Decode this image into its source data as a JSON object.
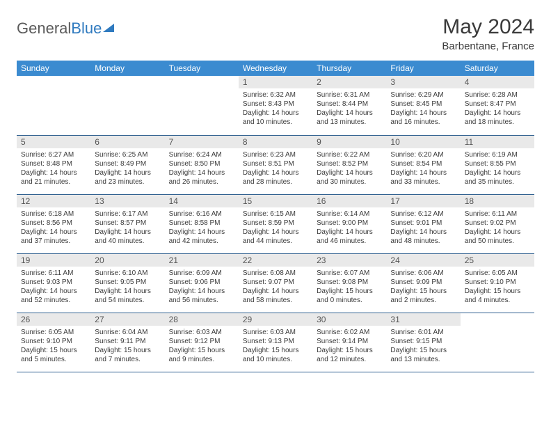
{
  "logo": {
    "part1": "General",
    "part2": "Blue"
  },
  "title": "May 2024",
  "location": "Barbentane, France",
  "colors": {
    "header_bg": "#3b8bd0",
    "header_text": "#ffffff",
    "daynum_bg": "#e9e9e9",
    "row_border": "#2e5f8f",
    "logo_gray": "#5a5a5a",
    "logo_blue": "#2f7abf",
    "text": "#3a3a3a"
  },
  "dayNames": [
    "Sunday",
    "Monday",
    "Tuesday",
    "Wednesday",
    "Thursday",
    "Friday",
    "Saturday"
  ],
  "weeks": [
    [
      null,
      null,
      null,
      {
        "n": "1",
        "sr": "6:32 AM",
        "ss": "8:43 PM",
        "dl": "14 hours and 10 minutes."
      },
      {
        "n": "2",
        "sr": "6:31 AM",
        "ss": "8:44 PM",
        "dl": "14 hours and 13 minutes."
      },
      {
        "n": "3",
        "sr": "6:29 AM",
        "ss": "8:45 PM",
        "dl": "14 hours and 16 minutes."
      },
      {
        "n": "4",
        "sr": "6:28 AM",
        "ss": "8:47 PM",
        "dl": "14 hours and 18 minutes."
      }
    ],
    [
      {
        "n": "5",
        "sr": "6:27 AM",
        "ss": "8:48 PM",
        "dl": "14 hours and 21 minutes."
      },
      {
        "n": "6",
        "sr": "6:25 AM",
        "ss": "8:49 PM",
        "dl": "14 hours and 23 minutes."
      },
      {
        "n": "7",
        "sr": "6:24 AM",
        "ss": "8:50 PM",
        "dl": "14 hours and 26 minutes."
      },
      {
        "n": "8",
        "sr": "6:23 AM",
        "ss": "8:51 PM",
        "dl": "14 hours and 28 minutes."
      },
      {
        "n": "9",
        "sr": "6:22 AM",
        "ss": "8:52 PM",
        "dl": "14 hours and 30 minutes."
      },
      {
        "n": "10",
        "sr": "6:20 AM",
        "ss": "8:54 PM",
        "dl": "14 hours and 33 minutes."
      },
      {
        "n": "11",
        "sr": "6:19 AM",
        "ss": "8:55 PM",
        "dl": "14 hours and 35 minutes."
      }
    ],
    [
      {
        "n": "12",
        "sr": "6:18 AM",
        "ss": "8:56 PM",
        "dl": "14 hours and 37 minutes."
      },
      {
        "n": "13",
        "sr": "6:17 AM",
        "ss": "8:57 PM",
        "dl": "14 hours and 40 minutes."
      },
      {
        "n": "14",
        "sr": "6:16 AM",
        "ss": "8:58 PM",
        "dl": "14 hours and 42 minutes."
      },
      {
        "n": "15",
        "sr": "6:15 AM",
        "ss": "8:59 PM",
        "dl": "14 hours and 44 minutes."
      },
      {
        "n": "16",
        "sr": "6:14 AM",
        "ss": "9:00 PM",
        "dl": "14 hours and 46 minutes."
      },
      {
        "n": "17",
        "sr": "6:12 AM",
        "ss": "9:01 PM",
        "dl": "14 hours and 48 minutes."
      },
      {
        "n": "18",
        "sr": "6:11 AM",
        "ss": "9:02 PM",
        "dl": "14 hours and 50 minutes."
      }
    ],
    [
      {
        "n": "19",
        "sr": "6:11 AM",
        "ss": "9:03 PM",
        "dl": "14 hours and 52 minutes."
      },
      {
        "n": "20",
        "sr": "6:10 AM",
        "ss": "9:05 PM",
        "dl": "14 hours and 54 minutes."
      },
      {
        "n": "21",
        "sr": "6:09 AM",
        "ss": "9:06 PM",
        "dl": "14 hours and 56 minutes."
      },
      {
        "n": "22",
        "sr": "6:08 AM",
        "ss": "9:07 PM",
        "dl": "14 hours and 58 minutes."
      },
      {
        "n": "23",
        "sr": "6:07 AM",
        "ss": "9:08 PM",
        "dl": "15 hours and 0 minutes."
      },
      {
        "n": "24",
        "sr": "6:06 AM",
        "ss": "9:09 PM",
        "dl": "15 hours and 2 minutes."
      },
      {
        "n": "25",
        "sr": "6:05 AM",
        "ss": "9:10 PM",
        "dl": "15 hours and 4 minutes."
      }
    ],
    [
      {
        "n": "26",
        "sr": "6:05 AM",
        "ss": "9:10 PM",
        "dl": "15 hours and 5 minutes."
      },
      {
        "n": "27",
        "sr": "6:04 AM",
        "ss": "9:11 PM",
        "dl": "15 hours and 7 minutes."
      },
      {
        "n": "28",
        "sr": "6:03 AM",
        "ss": "9:12 PM",
        "dl": "15 hours and 9 minutes."
      },
      {
        "n": "29",
        "sr": "6:03 AM",
        "ss": "9:13 PM",
        "dl": "15 hours and 10 minutes."
      },
      {
        "n": "30",
        "sr": "6:02 AM",
        "ss": "9:14 PM",
        "dl": "15 hours and 12 minutes."
      },
      {
        "n": "31",
        "sr": "6:01 AM",
        "ss": "9:15 PM",
        "dl": "15 hours and 13 minutes."
      },
      null
    ]
  ],
  "labels": {
    "sunrise": "Sunrise: ",
    "sunset": "Sunset: ",
    "daylight": "Daylight: "
  }
}
